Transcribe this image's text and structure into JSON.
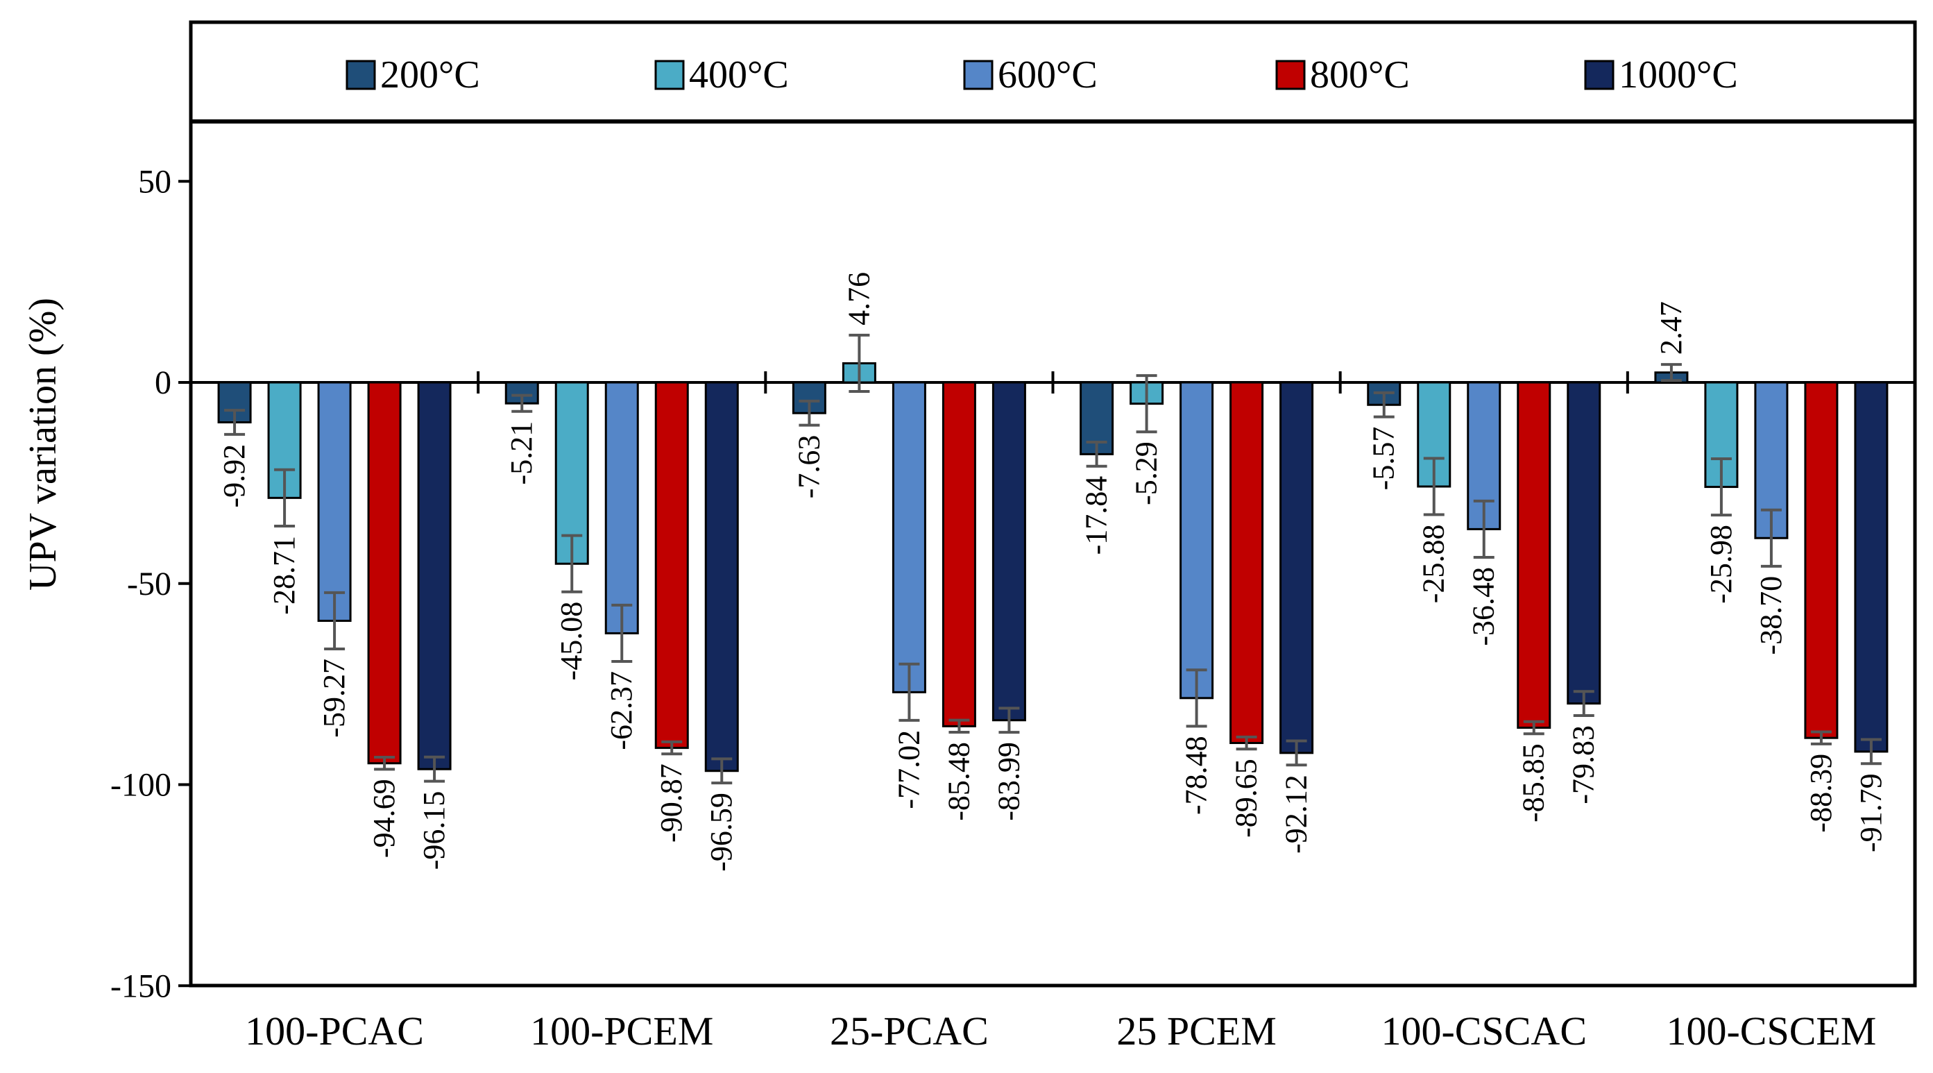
{
  "chart_data": {
    "type": "bar",
    "title": "",
    "xlabel": "",
    "ylabel": "UPV variation  (%)",
    "ylim": [
      -150,
      70
    ],
    "yticks": [
      50,
      0,
      -50,
      -100,
      -150
    ],
    "legend_position": "top",
    "categories": [
      "100-PCAC",
      "100-PCEM",
      "25-PCAC",
      "25 PCEM",
      "100-CSCAC",
      "100-CSCEM"
    ],
    "series": [
      {
        "name": "200°C",
        "color": "#1f4e79",
        "values": [
          -9.92,
          -5.21,
          -7.63,
          -17.84,
          -5.57,
          2.47
        ],
        "labels": [
          "-9.92",
          "-5.21",
          "-7.63",
          "-17.84",
          "-5.57",
          "2.47"
        ],
        "errors": [
          3,
          2,
          3,
          3,
          3,
          2
        ]
      },
      {
        "name": "400°C",
        "color": "#4bacc6",
        "values": [
          -28.71,
          -45.08,
          4.76,
          -5.29,
          -25.88,
          -25.98
        ],
        "labels": [
          "-28.71",
          "-45.08",
          "4.76",
          "-5.29",
          "-25.88",
          "-25.98"
        ],
        "errors": [
          7,
          7,
          7,
          7,
          7,
          7
        ]
      },
      {
        "name": "600°C",
        "color": "#5586c8",
        "values": [
          -59.27,
          -62.37,
          -77.02,
          -78.48,
          -36.48,
          -38.7
        ],
        "labels": [
          "-59.27",
          "-62.37",
          "-77.02",
          "-78.48",
          "-36.48",
          "-38.70"
        ],
        "errors": [
          7,
          7,
          7,
          7,
          7,
          7
        ]
      },
      {
        "name": "800°C",
        "color": "#c00000",
        "values": [
          -94.69,
          -90.87,
          -85.48,
          -89.65,
          -85.85,
          -88.39
        ],
        "labels": [
          "-94.69",
          "-90.87",
          "-85.48",
          "-89.65",
          "-85.85",
          "-88.39"
        ],
        "errors": [
          1.5,
          1.5,
          1.5,
          1.5,
          1.5,
          1.5
        ]
      },
      {
        "name": "1000°C",
        "color": "#14285c",
        "values": [
          -96.15,
          -96.59,
          -83.99,
          -92.12,
          -79.83,
          -91.79
        ],
        "labels": [
          "-96.15",
          "-96.59",
          "-83.99",
          "-92.12",
          "-79.83",
          "-91.79"
        ],
        "errors": [
          3,
          3,
          3,
          3,
          3,
          3
        ]
      }
    ]
  }
}
